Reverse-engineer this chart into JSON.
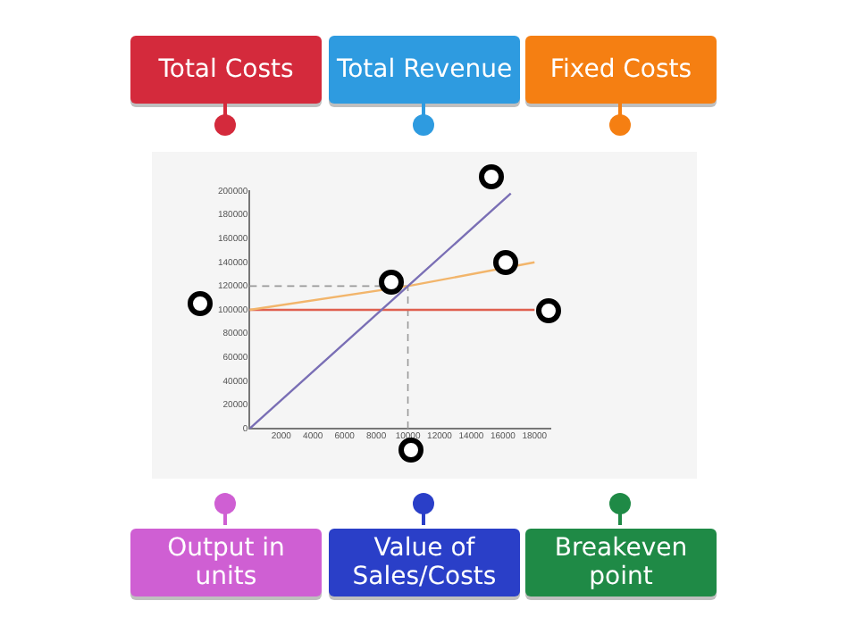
{
  "chart_data": {
    "type": "line",
    "xlim": [
      0,
      19000
    ],
    "xticks": [
      2000,
      4000,
      6000,
      8000,
      10000,
      12000,
      14000,
      16000,
      18000
    ],
    "ylim": [
      0,
      200000
    ],
    "yticks": [
      0,
      20000,
      40000,
      60000,
      80000,
      100000,
      120000,
      140000,
      160000,
      180000,
      200000
    ],
    "series": [
      {
        "color": "#7a6fb5",
        "x": [
          0,
          10000,
          16500
        ],
        "values": [
          0,
          120000,
          198000
        ]
      },
      {
        "color": "#f2b56b",
        "x": [
          0,
          10000,
          18000
        ],
        "values": [
          100000,
          120000,
          140000
        ]
      },
      {
        "color": "#e0604f",
        "x": [
          0,
          18000
        ],
        "values": [
          100000,
          100000
        ]
      }
    ],
    "ref_lines": [
      {
        "axis": "x",
        "value": 10000,
        "color": "#999999",
        "line_style": "dashed"
      },
      {
        "axis": "y",
        "value": 120000,
        "color": "#999999",
        "line_style": "dashed"
      }
    ],
    "grid": false,
    "legend": false,
    "marker": "none",
    "annotations": [
      "Total Costs",
      "Total Revenue",
      "Fixed Costs",
      "Output in units",
      "Value of Sales/Costs",
      "Breakeven point"
    ]
  }
}
